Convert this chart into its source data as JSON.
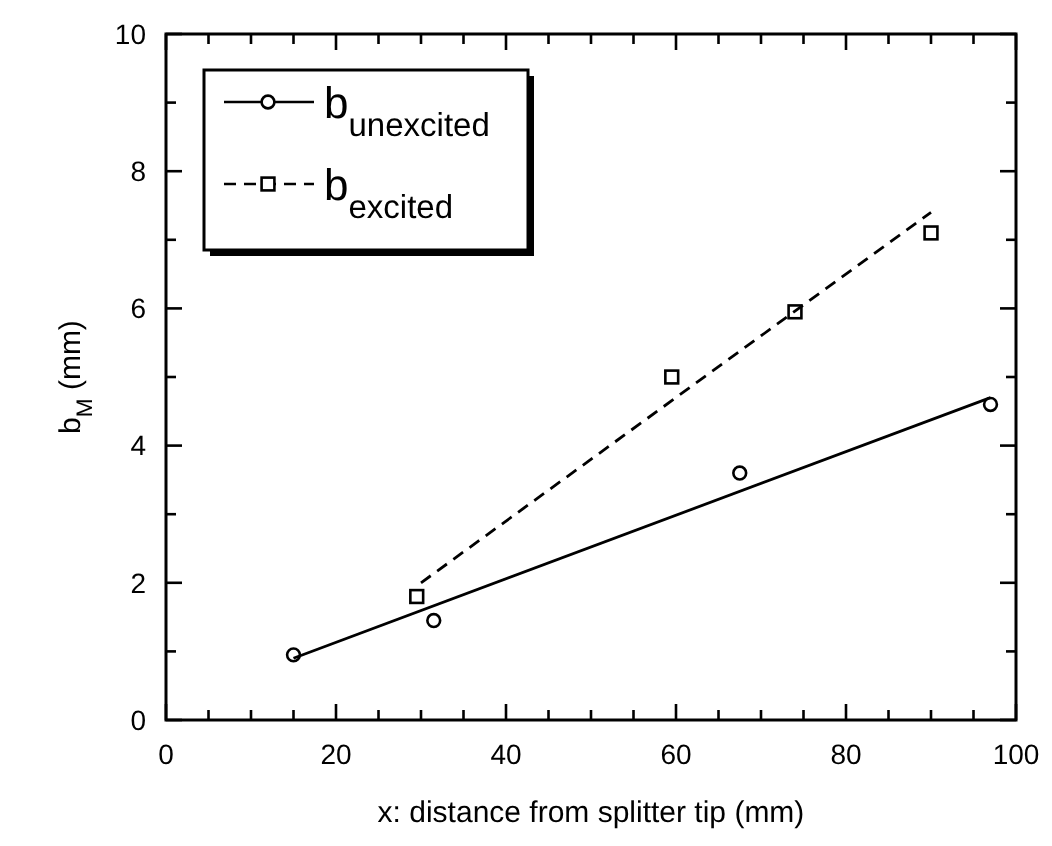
{
  "chart_data": {
    "type": "scatter",
    "xlabel": "x: distance from splitter tip (mm)",
    "ylabel": "b$_{M}$ (mm)",
    "xlim": [
      0,
      100
    ],
    "ylim": [
      0,
      10
    ],
    "xticks": [
      0,
      {
        "value": 5,
        "label": null
      },
      20,
      {
        "value": 15,
        "label": null
      },
      {
        "value": 10,
        "label": null
      },
      {
        "value": 25,
        "label": null
      },
      {
        "value": 30,
        "label": null
      },
      {
        "value": 35,
        "label": null
      },
      40,
      {
        "value": 45,
        "label": null
      },
      {
        "value": 50,
        "label": null
      },
      {
        "value": 55,
        "label": null
      },
      60,
      {
        "value": 65,
        "label": null
      },
      {
        "value": 70,
        "label": null
      },
      {
        "value": 75,
        "label": null
      },
      80,
      {
        "value": 85,
        "label": null
      },
      {
        "value": 90,
        "label": null
      },
      {
        "value": 95,
        "label": null
      },
      100
    ],
    "yticks": [
      0,
      {
        "value": 1,
        "label": null
      },
      2,
      {
        "value": 3,
        "label": null
      },
      4,
      {
        "value": 5,
        "label": null
      },
      6,
      {
        "value": 7,
        "label": null
      },
      8,
      {
        "value": 9,
        "label": null
      },
      10
    ],
    "legend": "top left",
    "grid": false,
    "series": [
      {
        "name": "b$_{unexcited}$",
        "color": "#000000",
        "marker": "circle",
        "line_style": "solid",
        "x": [
          15,
          31.5,
          67.5,
          97
        ],
        "values": [
          0.95,
          1.45,
          3.6,
          4.6
        ]
      },
      {
        "name": "b$_{excited}$",
        "color": "#000000",
        "marker": "square",
        "line_style": "dashed",
        "x": [
          29.5,
          59.5,
          74,
          90
        ],
        "values": [
          1.8,
          5.0,
          5.95,
          7.1
        ]
      },
      {
        "color": "#000000",
        "type": "line",
        "line_style": "solid",
        "x": [
          15,
          97
        ],
        "values": [
          0.9,
          4.7
        ]
      },
      {
        "color": "#000000",
        "type": "line",
        "line_style": "dashed",
        "x": [
          30,
          90
        ],
        "values": [
          2.0,
          7.4
        ]
      }
    ]
  }
}
